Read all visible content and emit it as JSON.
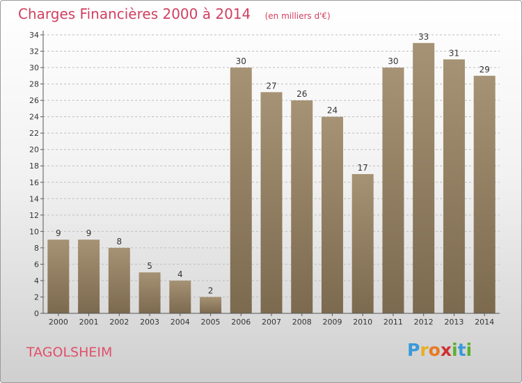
{
  "header": {
    "title": "Charges Financières 2000 à 2014",
    "subtitle": "(en milliers d'€)"
  },
  "footer": {
    "city": "TAGOLSHEIM",
    "logo_letters": [
      "P",
      "r",
      "o",
      "x",
      "i",
      "t",
      "i"
    ],
    "logo_colors": [
      "#3a9ad9",
      "#e8b020",
      "#e87a20",
      "#d03030",
      "#5ab030",
      "#3a9ad9",
      "#5ab030"
    ]
  },
  "colors": {
    "bar": "#a69274",
    "bar_dark": "#7c6a4f",
    "axis": "#555555",
    "grid": "#bdbdbd"
  },
  "chart_data": {
    "type": "bar",
    "categories": [
      "2000",
      "2001",
      "2002",
      "2003",
      "2004",
      "2005",
      "2006",
      "2007",
      "2008",
      "2009",
      "2010",
      "2011",
      "2012",
      "2013",
      "2014"
    ],
    "values": [
      9,
      9,
      8,
      5,
      4,
      2,
      30,
      27,
      26,
      24,
      17,
      30,
      33,
      31,
      29
    ],
    "yticks": [
      0,
      2,
      4,
      6,
      8,
      10,
      12,
      14,
      16,
      18,
      20,
      22,
      24,
      26,
      28,
      30,
      32,
      34
    ],
    "ylim": [
      0,
      34
    ],
    "grid": true,
    "legend": false
  }
}
